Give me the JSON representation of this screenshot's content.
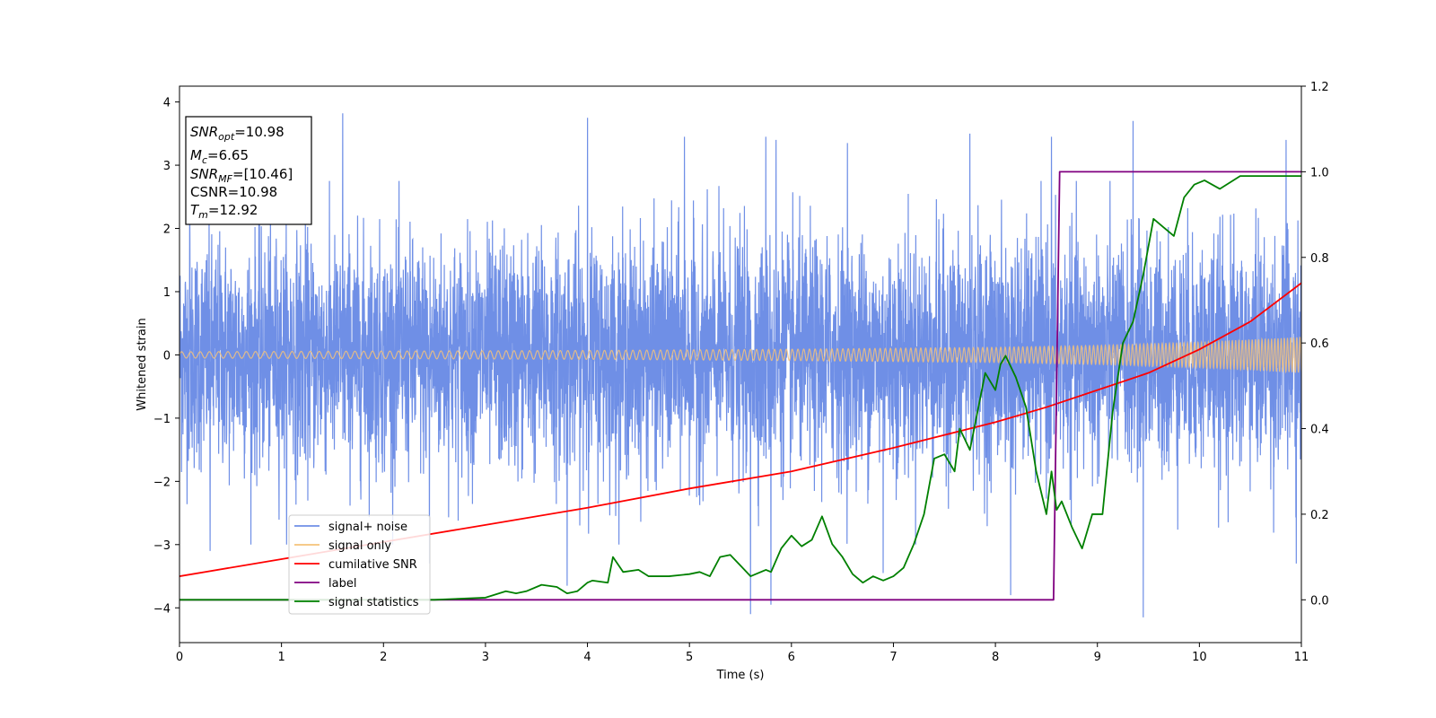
{
  "chart_data": {
    "type": "line",
    "xlabel": "Time (s)",
    "ylabel": "Whitened strain",
    "xlim": [
      0,
      11
    ],
    "ylim_left": [
      -4.55,
      4.25
    ],
    "ylim_right": [
      -0.1,
      1.2
    ],
    "x_ticks": [
      0,
      1,
      2,
      3,
      4,
      5,
      6,
      7,
      8,
      9,
      10,
      11
    ],
    "y_ticks_left": [
      -4,
      -3,
      -2,
      -1,
      0,
      1,
      2,
      3,
      4
    ],
    "y_ticks_right": [
      0.0,
      0.2,
      0.4,
      0.6,
      0.8,
      1.0,
      1.2
    ],
    "grid": false,
    "legend_position": "lower-left",
    "info_box": {
      "lines": [
        {
          "name": "SNR",
          "sub": "opt",
          "value": "=10.98"
        },
        {
          "name": "M",
          "sub": "c",
          "value": "=6.65"
        },
        {
          "name": "SNR",
          "sub": "MF",
          "value": "=[10.46]"
        },
        {
          "name": "CSNR",
          "sub": "",
          "value": "=10.98"
        },
        {
          "name": "T",
          "sub": "m",
          "value": "=12.92"
        }
      ]
    },
    "series": [
      {
        "name": "signal+ noise",
        "axis": "left",
        "color": "#6f8fe6",
        "description_amplitude": {
          "typical_abs": 1.2,
          "max_peak": 3.85,
          "min_peak": -4.15
        },
        "peaks": [
          [
            0.1,
            2.4
          ],
          [
            1.6,
            3.82
          ],
          [
            4.0,
            3.75
          ],
          [
            4.95,
            3.45
          ],
          [
            5.75,
            3.45
          ],
          [
            5.85,
            3.4
          ],
          [
            6.55,
            3.35
          ],
          [
            7.75,
            3.5
          ],
          [
            8.55,
            3.45
          ],
          [
            9.35,
            3.7
          ],
          [
            10.85,
            3.4
          ],
          [
            0.3,
            -3.1
          ],
          [
            2.45,
            -3.3
          ],
          [
            3.8,
            -3.65
          ],
          [
            5.6,
            -4.1
          ],
          [
            5.8,
            -3.95
          ],
          [
            6.9,
            -3.45
          ],
          [
            8.15,
            -3.8
          ],
          [
            9.45,
            -4.15
          ],
          [
            10.95,
            -3.3
          ]
        ]
      },
      {
        "name": "signal only",
        "axis": "left",
        "color": "#f5c27a",
        "amplitude_envelope": [
          [
            0,
            0.05
          ],
          [
            2,
            0.06
          ],
          [
            4,
            0.07
          ],
          [
            6,
            0.09
          ],
          [
            8,
            0.12
          ],
          [
            9,
            0.15
          ],
          [
            10,
            0.2
          ],
          [
            11,
            0.28
          ]
        ]
      },
      {
        "name": "cumilative SNR",
        "axis": "right",
        "color": "#ff0000",
        "x": [
          0,
          1,
          2,
          3,
          4,
          5,
          6,
          7,
          8,
          8.5,
          9,
          9.5,
          10,
          10.5,
          11
        ],
        "y": [
          0.055,
          0.095,
          0.135,
          0.175,
          0.215,
          0.26,
          0.3,
          0.355,
          0.415,
          0.45,
          0.49,
          0.53,
          0.585,
          0.65,
          0.74
        ]
      },
      {
        "name": "label",
        "axis": "right",
        "color": "#800080",
        "x": [
          0,
          8.57,
          8.63,
          11
        ],
        "y": [
          0.0,
          0.0,
          1.0,
          1.0
        ]
      },
      {
        "name": "signal statistics",
        "axis": "right",
        "color": "#008000",
        "x": [
          0,
          0.5,
          1,
          1.5,
          2,
          2.5,
          3,
          3.2,
          3.3,
          3.4,
          3.55,
          3.7,
          3.8,
          3.9,
          4.0,
          4.05,
          4.2,
          4.25,
          4.35,
          4.5,
          4.6,
          4.8,
          5.0,
          5.1,
          5.2,
          5.3,
          5.4,
          5.5,
          5.6,
          5.75,
          5.8,
          5.9,
          6.0,
          6.1,
          6.2,
          6.3,
          6.4,
          6.5,
          6.6,
          6.7,
          6.8,
          6.9,
          7.0,
          7.1,
          7.2,
          7.3,
          7.4,
          7.5,
          7.6,
          7.65,
          7.75,
          7.85,
          7.9,
          8.0,
          8.05,
          8.1,
          8.2,
          8.3,
          8.4,
          8.5,
          8.55,
          8.6,
          8.65,
          8.75,
          8.85,
          8.95,
          9.05,
          9.15,
          9.25,
          9.35,
          9.45,
          9.55,
          9.65,
          9.75,
          9.85,
          9.95,
          10.05,
          10.2,
          10.4,
          10.6,
          10.8,
          11.0
        ],
        "y": [
          0.0,
          0.0,
          0.0,
          0.0,
          0.0,
          0.0,
          0.005,
          0.02,
          0.015,
          0.02,
          0.035,
          0.03,
          0.015,
          0.02,
          0.04,
          0.045,
          0.04,
          0.1,
          0.065,
          0.07,
          0.055,
          0.055,
          0.06,
          0.065,
          0.055,
          0.1,
          0.105,
          0.08,
          0.055,
          0.07,
          0.065,
          0.12,
          0.15,
          0.125,
          0.14,
          0.195,
          0.13,
          0.1,
          0.06,
          0.04,
          0.055,
          0.045,
          0.055,
          0.075,
          0.13,
          0.2,
          0.33,
          0.34,
          0.3,
          0.4,
          0.35,
          0.47,
          0.53,
          0.49,
          0.55,
          0.57,
          0.52,
          0.45,
          0.3,
          0.2,
          0.3,
          0.21,
          0.23,
          0.17,
          0.12,
          0.2,
          0.2,
          0.44,
          0.6,
          0.65,
          0.76,
          0.89,
          0.87,
          0.85,
          0.94,
          0.97,
          0.98,
          0.96,
          0.99,
          0.99,
          0.99,
          0.99
        ]
      }
    ]
  }
}
